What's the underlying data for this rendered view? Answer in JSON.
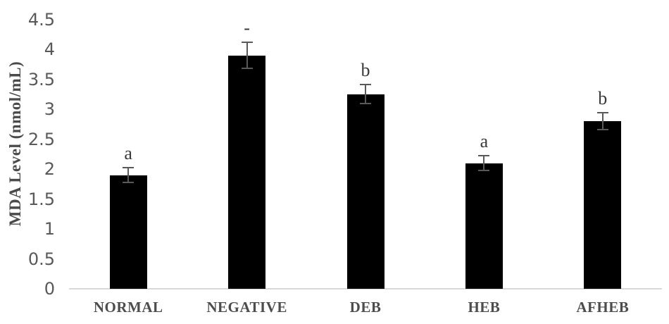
{
  "chart_data": {
    "type": "bar",
    "title": "",
    "xlabel": "",
    "ylabel": "MDA Level (nmol/mL)",
    "categories": [
      "NORMAL",
      "NEGATIVE",
      "DEB",
      "HEB",
      "AFHEB"
    ],
    "values": [
      1.9,
      3.9,
      3.25,
      2.1,
      2.8
    ],
    "error_bars": [
      0.12,
      0.22,
      0.16,
      0.12,
      0.14
    ],
    "annotations": [
      "a",
      "-",
      "b",
      "a",
      "b"
    ],
    "y_ticks": [
      0,
      0.5,
      1,
      1.5,
      2,
      2.5,
      3,
      3.5,
      4,
      4.5
    ],
    "ylim": [
      0,
      4.5
    ],
    "grid": false,
    "legend": "none",
    "colors": {
      "bar": "#000000",
      "error_bar": "#595959",
      "axis_line": "#d9d9d9",
      "tick_label": "#595959",
      "category_label": "#4d4d4d",
      "axis_title": "#4a4a4a",
      "annotation": "#3a3a3a",
      "background": "#ffffff"
    }
  }
}
